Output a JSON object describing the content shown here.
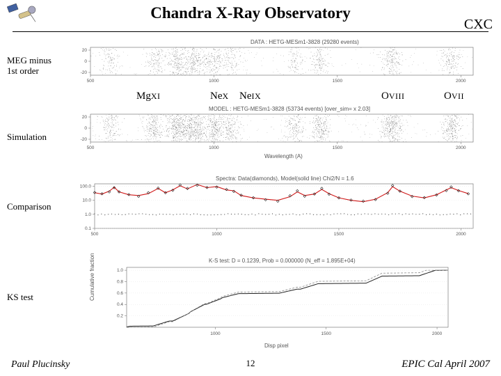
{
  "header": {
    "title": "Chandra X-Ray Observatory",
    "org": "CXC"
  },
  "labels": {
    "panel1": "MEG minus\n1st order",
    "panel2": "Simulation",
    "panel3": "Comparison",
    "panel4": "KS test"
  },
  "ions": {
    "mg": "Mg",
    "mg_num": "XI",
    "ne1": "Ne",
    "ne1_num": "X",
    "ne2": "Ne",
    "ne2_num": "IX",
    "o1": "O",
    "o1_num": "VIII",
    "o2": "O",
    "o2_num": "VII"
  },
  "panel1_title": "DATA : HETG-MESm1-3828 (29280 events)",
  "panel2_title": "MODEL : HETG-MESm1-3828 (53734 events) [over_sim= x 2.03]",
  "panel3_title": "Spectra: Data(diamonds), Model(solid line)  Chi2/N = 1.6",
  "panel4_title": "K-S test: D = 0.1239, Prob = 0.000000 (N_eff = 1.895E+04)",
  "panel3_axis_x": "Wavelength (A)",
  "panel4_axis_x": "Disp pixel",
  "panel4_axis_y": "Cumulative fraction",
  "scatter_panels": {
    "x_ticks": [
      "500",
      "1000",
      "1500",
      "2000"
    ],
    "y_ticks": [
      "-20",
      "0",
      "20"
    ],
    "centers": [
      580,
      760,
      850,
      920,
      1000,
      1070,
      1330,
      1430,
      1720,
      1960
    ],
    "intensities": [
      0.35,
      0.55,
      0.85,
      0.95,
      0.7,
      0.45,
      0.4,
      0.55,
      0.8,
      0.6
    ],
    "sigma_y": 18,
    "density_bg": 0.12,
    "point_color": "#3a3a3a",
    "border_color": "#888888"
  },
  "comparison_panel": {
    "x_ticks": [
      "500",
      "1000",
      "1500",
      "2000"
    ],
    "y_ticks": [
      "0.1",
      "1.0",
      "10.0",
      "100.0"
    ],
    "model_color": "#d01818",
    "data_color": "#202020",
    "curve": [
      [
        500,
        35
      ],
      [
        530,
        28
      ],
      [
        560,
        45
      ],
      [
        580,
        85
      ],
      [
        600,
        40
      ],
      [
        640,
        25
      ],
      [
        680,
        22
      ],
      [
        720,
        30
      ],
      [
        760,
        70
      ],
      [
        790,
        35
      ],
      [
        820,
        55
      ],
      [
        850,
        110
      ],
      [
        880,
        65
      ],
      [
        920,
        135
      ],
      [
        960,
        80
      ],
      [
        1000,
        95
      ],
      [
        1040,
        55
      ],
      [
        1070,
        48
      ],
      [
        1100,
        22
      ],
      [
        1150,
        15
      ],
      [
        1200,
        12
      ],
      [
        1250,
        10
      ],
      [
        1300,
        18
      ],
      [
        1330,
        40
      ],
      [
        1360,
        22
      ],
      [
        1400,
        28
      ],
      [
        1430,
        60
      ],
      [
        1460,
        30
      ],
      [
        1500,
        15
      ],
      [
        1550,
        10
      ],
      [
        1600,
        8
      ],
      [
        1650,
        12
      ],
      [
        1700,
        35
      ],
      [
        1720,
        95
      ],
      [
        1750,
        45
      ],
      [
        1800,
        20
      ],
      [
        1850,
        15
      ],
      [
        1900,
        25
      ],
      [
        1940,
        55
      ],
      [
        1960,
        80
      ],
      [
        1990,
        50
      ],
      [
        2030,
        30
      ]
    ],
    "ratio_baseline": 1.0,
    "ratio_color": "#555555"
  },
  "ks_panel": {
    "x_ticks": [
      "1000",
      "1500",
      "2000"
    ],
    "y_ticks": [
      "0.2",
      "0.4",
      "0.6",
      "0.8",
      "1.0"
    ],
    "curve_color": "#222222",
    "curve2_color": "#888888",
    "xlim": [
      600,
      2050
    ],
    "ylim": [
      0,
      1.05
    ]
  },
  "footer": {
    "author": "Paul Plucinsky",
    "page": "12",
    "venue": "EPIC Cal April 2007"
  },
  "colors": {
    "bg": "#ffffff",
    "text": "#000000",
    "satellite_body": "#d4c28a",
    "satellite_plate": "#a8a8c0",
    "satellite_panel": "#4060a0"
  }
}
